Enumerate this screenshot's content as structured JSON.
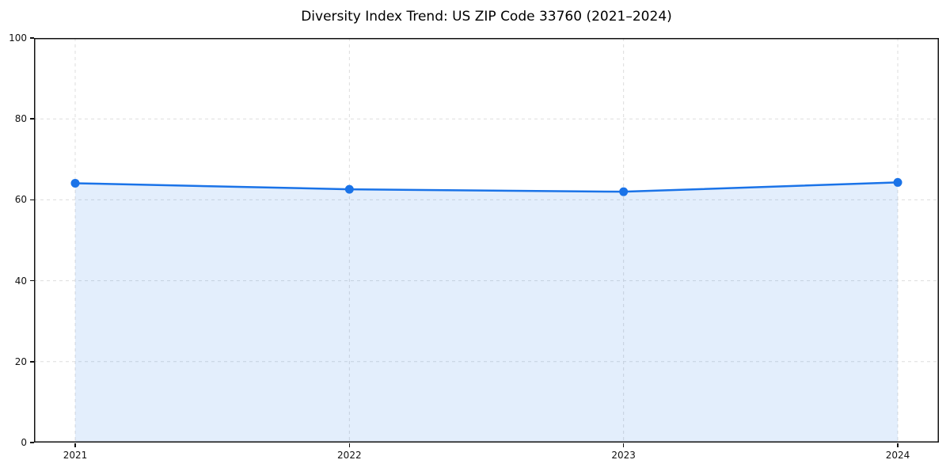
{
  "chart_data": {
    "type": "area",
    "title": "Diversity Index Trend: US ZIP Code 33760 (2021–2024)",
    "x": [
      "2021",
      "2022",
      "2023",
      "2024"
    ],
    "series": [
      {
        "name": "Diversity Index",
        "values": [
          64.1,
          62.6,
          62.0,
          64.3
        ]
      }
    ],
    "xlabel": "",
    "ylabel": "",
    "ylim": [
      0,
      100
    ],
    "yticks": [
      0,
      20,
      40,
      60,
      80,
      100
    ],
    "grid": true,
    "grid_style": "dashed",
    "legend": "none",
    "colors": {
      "line": "#1a73e8",
      "marker": "#1a73e8",
      "fill": "rgba(26,115,232,0.12)",
      "grid": "#dddddd",
      "frame": "#111111",
      "tick_text": "#111111",
      "title_text": "#000000"
    }
  }
}
